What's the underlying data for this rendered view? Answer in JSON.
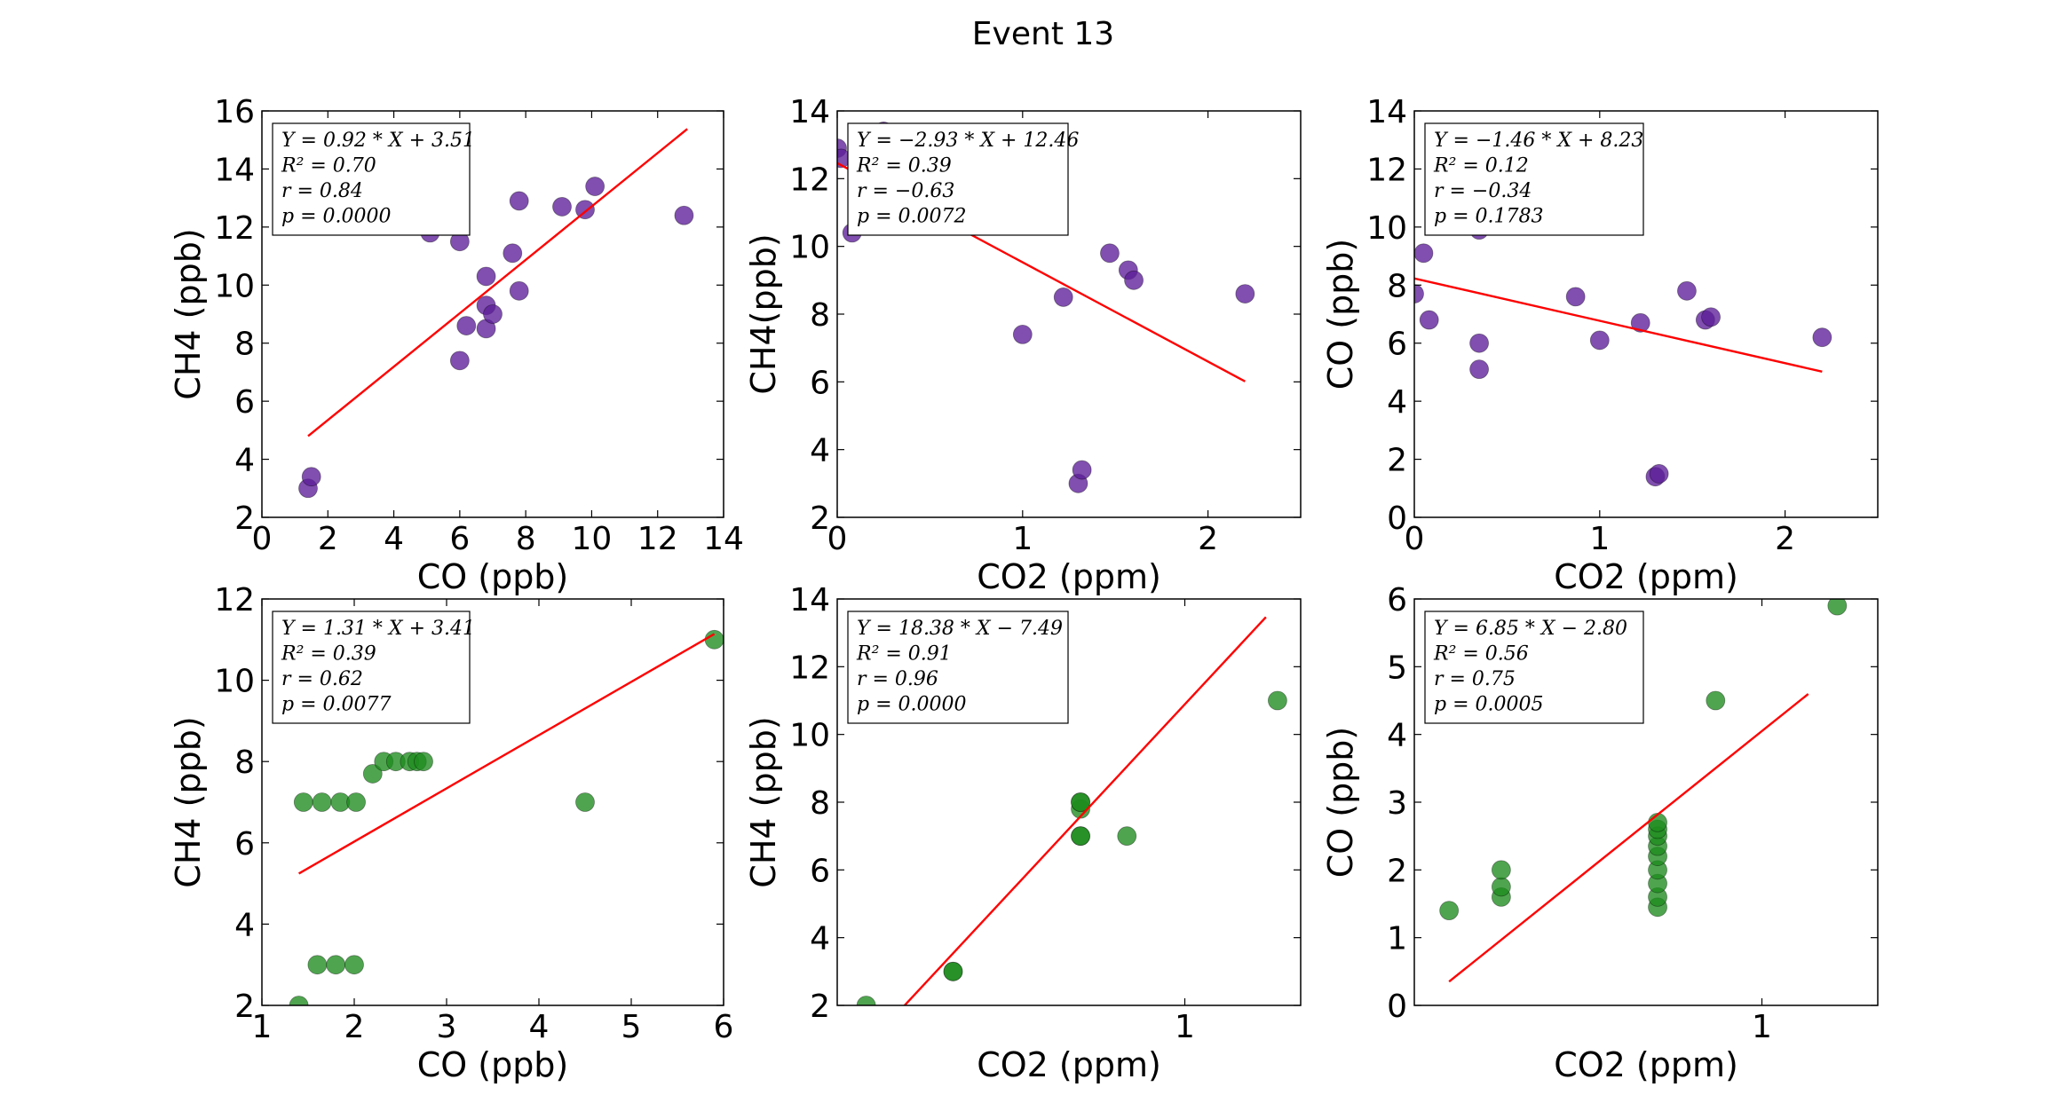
{
  "figure": {
    "title": "Event 13"
  },
  "chart_data": [
    {
      "type": "scatter",
      "xlabel": "CO (ppb)",
      "ylabel": "CH4 (ppb)",
      "xlim": [
        0,
        14
      ],
      "ylim": [
        2,
        16
      ],
      "xticks": [
        "0",
        "2",
        "4",
        "6",
        "8",
        "10",
        "12",
        "14"
      ],
      "yticks": [
        "2",
        "4",
        "6",
        "8",
        "10",
        "12",
        "14",
        "16"
      ],
      "marker_color": "#5c1d99",
      "stats": [
        "Y = 0.92 * X + 3.51",
        "R² = 0.70",
        "r = 0.84",
        "p = 0.0000"
      ],
      "fit": {
        "slope": 0.92,
        "intercept": 3.51,
        "x_range": [
          1.4,
          12.9
        ]
      },
      "points": [
        [
          1.4,
          3.0
        ],
        [
          1.5,
          3.4
        ],
        [
          5.1,
          11.8
        ],
        [
          6.0,
          11.5
        ],
        [
          6.0,
          7.4
        ],
        [
          6.2,
          8.6
        ],
        [
          6.8,
          8.5
        ],
        [
          6.8,
          9.3
        ],
        [
          6.8,
          10.3
        ],
        [
          7.0,
          9.0
        ],
        [
          7.6,
          11.1
        ],
        [
          7.8,
          12.9
        ],
        [
          7.8,
          9.8
        ],
        [
          9.1,
          12.7
        ],
        [
          9.8,
          12.6
        ],
        [
          10.1,
          13.4
        ],
        [
          12.8,
          12.4
        ]
      ]
    },
    {
      "type": "scatter",
      "xlabel": "CO2 (ppm)",
      "ylabel": "CH4(ppb)",
      "xlim": [
        0,
        2.5
      ],
      "ylim": [
        2,
        14
      ],
      "xticks": [
        "0",
        "1",
        "2"
      ],
      "yticks": [
        "2",
        "4",
        "6",
        "8",
        "10",
        "12",
        "14"
      ],
      "marker_color": "#5c1d99",
      "stats": [
        "Y = −2.93 * X + 12.46",
        "R² = 0.39",
        "r = −0.63",
        "p = 0.0072"
      ],
      "fit": {
        "slope": -2.93,
        "intercept": 12.46,
        "x_range": [
          0.0,
          2.2
        ]
      },
      "points": [
        [
          0.0,
          12.9
        ],
        [
          0.02,
          12.6
        ],
        [
          0.08,
          10.4
        ],
        [
          0.25,
          13.4
        ],
        [
          1.0,
          7.4
        ],
        [
          1.22,
          8.5
        ],
        [
          1.3,
          3.0
        ],
        [
          1.32,
          3.4
        ],
        [
          1.47,
          9.8
        ],
        [
          1.57,
          9.3
        ],
        [
          1.6,
          9.0
        ],
        [
          2.2,
          8.6
        ]
      ]
    },
    {
      "type": "scatter",
      "xlabel": "CO2 (ppm)",
      "ylabel": "CO (ppb)",
      "xlim": [
        0,
        2.5
      ],
      "ylim": [
        0,
        14
      ],
      "xticks": [
        "0",
        "1",
        "2"
      ],
      "yticks": [
        "0",
        "2",
        "4",
        "6",
        "8",
        "10",
        "12",
        "14"
      ],
      "marker_color": "#5c1d99",
      "stats": [
        "Y = −1.46 * X + 8.23",
        "R² = 0.12",
        "r = −0.34",
        "p = 0.1783"
      ],
      "fit": {
        "slope": -1.46,
        "intercept": 8.23,
        "x_range": [
          0.0,
          2.2
        ]
      },
      "points": [
        [
          0.0,
          7.7
        ],
        [
          0.05,
          9.1
        ],
        [
          0.08,
          6.8
        ],
        [
          0.35,
          9.9
        ],
        [
          0.35,
          6.0
        ],
        [
          0.35,
          5.1
        ],
        [
          0.87,
          7.6
        ],
        [
          1.0,
          6.1
        ],
        [
          1.22,
          6.7
        ],
        [
          1.3,
          1.4
        ],
        [
          1.32,
          1.5
        ],
        [
          1.47,
          7.8
        ],
        [
          1.57,
          6.8
        ],
        [
          1.6,
          6.9
        ],
        [
          2.2,
          6.2
        ]
      ]
    },
    {
      "type": "scatter",
      "xlabel": "CO (ppb)",
      "ylabel": "CH4 (ppb)",
      "xlim": [
        1,
        6
      ],
      "ylim": [
        2,
        12
      ],
      "xticks": [
        "1",
        "2",
        "3",
        "4",
        "5",
        "6"
      ],
      "yticks": [
        "2",
        "4",
        "6",
        "8",
        "10",
        "12"
      ],
      "marker_color": "#1e8c1e",
      "stats": [
        "Y = 1.31 * X + 3.41",
        "R² = 0.39",
        "r = 0.62",
        "p = 0.0077"
      ],
      "fit": {
        "slope": 1.31,
        "intercept": 3.41,
        "x_range": [
          1.4,
          5.9
        ]
      },
      "points": [
        [
          1.4,
          2.0
        ],
        [
          1.45,
          7.0
        ],
        [
          1.6,
          3.0
        ],
        [
          1.65,
          7.0
        ],
        [
          1.8,
          3.0
        ],
        [
          1.85,
          7.0
        ],
        [
          2.0,
          3.0
        ],
        [
          2.02,
          7.0
        ],
        [
          2.2,
          7.7
        ],
        [
          2.32,
          8.0
        ],
        [
          2.45,
          8.0
        ],
        [
          2.6,
          8.0
        ],
        [
          2.68,
          8.0
        ],
        [
          2.75,
          8.0
        ],
        [
          4.5,
          7.0
        ],
        [
          5.9,
          11.0
        ]
      ]
    },
    {
      "type": "scatter",
      "xlabel": "CO2 (ppm)",
      "ylabel": "CH4 (ppb)",
      "xlim": [
        0.4,
        1.2
      ],
      "ylim": [
        2,
        14
      ],
      "xticks": [
        "1"
      ],
      "xtick_values": [
        1
      ],
      "yticks": [
        "2",
        "4",
        "6",
        "8",
        "10",
        "12",
        "14"
      ],
      "marker_color": "#1e8c1e",
      "stats": [
        "Y = 18.38 * X − 7.49",
        "R² = 0.91",
        "r = 0.96",
        "p = 0.0000"
      ],
      "fit": {
        "slope": 18.38,
        "intercept": -7.49,
        "x_range": [
          0.45,
          1.14
        ]
      },
      "points": [
        [
          0.45,
          2.0
        ],
        [
          0.6,
          3.0
        ],
        [
          0.6,
          3.0
        ],
        [
          0.82,
          7.0
        ],
        [
          0.82,
          7.0
        ],
        [
          0.82,
          7.8
        ],
        [
          0.82,
          8.0
        ],
        [
          0.82,
          8.0
        ],
        [
          0.9,
          7.0
        ],
        [
          1.16,
          11.0
        ]
      ]
    },
    {
      "type": "scatter",
      "xlabel": "CO2 (ppm)",
      "ylabel": "CO (ppb)",
      "xlim": [
        0.4,
        1.2
      ],
      "ylim": [
        0,
        6
      ],
      "xticks": [
        "1"
      ],
      "xtick_values": [
        1
      ],
      "yticks": [
        "0",
        "1",
        "2",
        "3",
        "4",
        "5",
        "6"
      ],
      "marker_color": "#1e8c1e",
      "stats": [
        "Y = 6.85 * X − 2.80",
        "R² = 0.56",
        "r = 0.75",
        "p = 0.0005"
      ],
      "fit": {
        "slope": 6.85,
        "intercept": -2.8,
        "x_range": [
          0.46,
          1.08
        ]
      },
      "points": [
        [
          0.46,
          1.4
        ],
        [
          0.55,
          1.6
        ],
        [
          0.55,
          1.75
        ],
        [
          0.55,
          2.0
        ],
        [
          0.82,
          1.45
        ],
        [
          0.82,
          1.6
        ],
        [
          0.82,
          1.8
        ],
        [
          0.82,
          2.0
        ],
        [
          0.82,
          2.2
        ],
        [
          0.82,
          2.35
        ],
        [
          0.82,
          2.5
        ],
        [
          0.82,
          2.6
        ],
        [
          0.82,
          2.7
        ],
        [
          0.92,
          4.5
        ],
        [
          1.13,
          5.9
        ]
      ]
    }
  ]
}
